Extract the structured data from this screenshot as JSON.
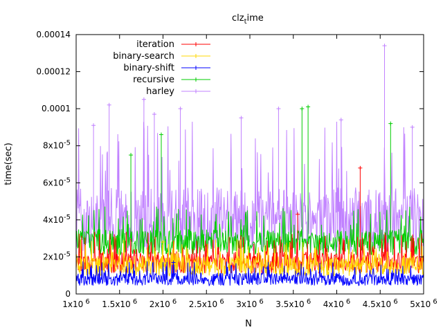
{
  "chart_data": {
    "type": "line",
    "title": "clz",
    "title_sub": "t",
    "title_rest": "ime",
    "xlabel": "N",
    "ylabel": "time(sec)",
    "xlim": [
      1000000,
      5000000
    ],
    "ylim": [
      0,
      0.00014
    ],
    "x_ticks": [
      1000000,
      1500000,
      2000000,
      2500000,
      3000000,
      3500000,
      4000000,
      4500000,
      5000000
    ],
    "x_tick_labels": [
      "1x10",
      "1.5x10",
      "2x10",
      "2.5x10",
      "3x10",
      "3.5x10",
      "4x10",
      "4.5x10",
      "5x10"
    ],
    "x_tick_exp": "6",
    "y_ticks": [
      0,
      2e-05,
      4e-05,
      6e-05,
      8e-05,
      0.0001,
      0.00012,
      0.00014
    ],
    "y_tick_labels": [
      "0",
      "2x10",
      "4x10",
      "6x10",
      "8x10",
      "0.0001",
      "0.00012",
      "0.00014"
    ],
    "y_tick_exps": [
      "",
      "-5",
      "-5",
      "-5",
      "-5",
      "",
      "",
      ""
    ],
    "grid": false,
    "legend_position": "top-left",
    "series": [
      {
        "name": "iteration",
        "color": "#ff0000",
        "band": [
          1.2e-05,
          2.4e-05
        ],
        "typical": 1.7e-05,
        "spikes": [
          [
            3550000,
            4.3e-05
          ],
          [
            4270000,
            6.8e-05
          ]
        ]
      },
      {
        "name": "binary-search",
        "color": "#ffd700",
        "band": [
          1e-05,
          2.1e-05
        ],
        "typical": 1.5e-05,
        "spikes": [
          [
            2000000,
            2.8e-05
          ]
        ]
      },
      {
        "name": "binary-shift",
        "color": "#0000ff",
        "band": [
          5e-06,
          1.2e-05
        ],
        "typical": 8e-06,
        "spikes": [
          [
            2120000,
            1.7e-05
          ],
          [
            3200000,
            1.4e-05
          ]
        ]
      },
      {
        "name": "recursive",
        "color": "#00cc00",
        "band": [
          2.2e-05,
          3.6e-05
        ],
        "typical": 2.8e-05,
        "spikes": [
          [
            3600000,
            0.0001
          ],
          [
            3670000,
            0.000101
          ],
          [
            4620000,
            9.2e-05
          ],
          [
            1980000,
            8.6e-05
          ],
          [
            1630000,
            7.5e-05
          ]
        ]
      },
      {
        "name": "harley",
        "color": "#c080ff",
        "band": [
          3e-05,
          6.5e-05
        ],
        "typical": 4e-05,
        "spikes": [
          [
            4550000,
            0.000134
          ],
          [
            1380000,
            0.000102
          ],
          [
            2200000,
            0.0001
          ],
          [
            1780000,
            0.000105
          ],
          [
            1900000,
            9.7e-05
          ],
          [
            3330000,
            0.0001
          ],
          [
            2900000,
            9.5e-05
          ],
          [
            4050000,
            9.4e-05
          ],
          [
            1200000,
            9.1e-05
          ],
          [
            4870000,
            9e-05
          ]
        ]
      }
    ]
  }
}
